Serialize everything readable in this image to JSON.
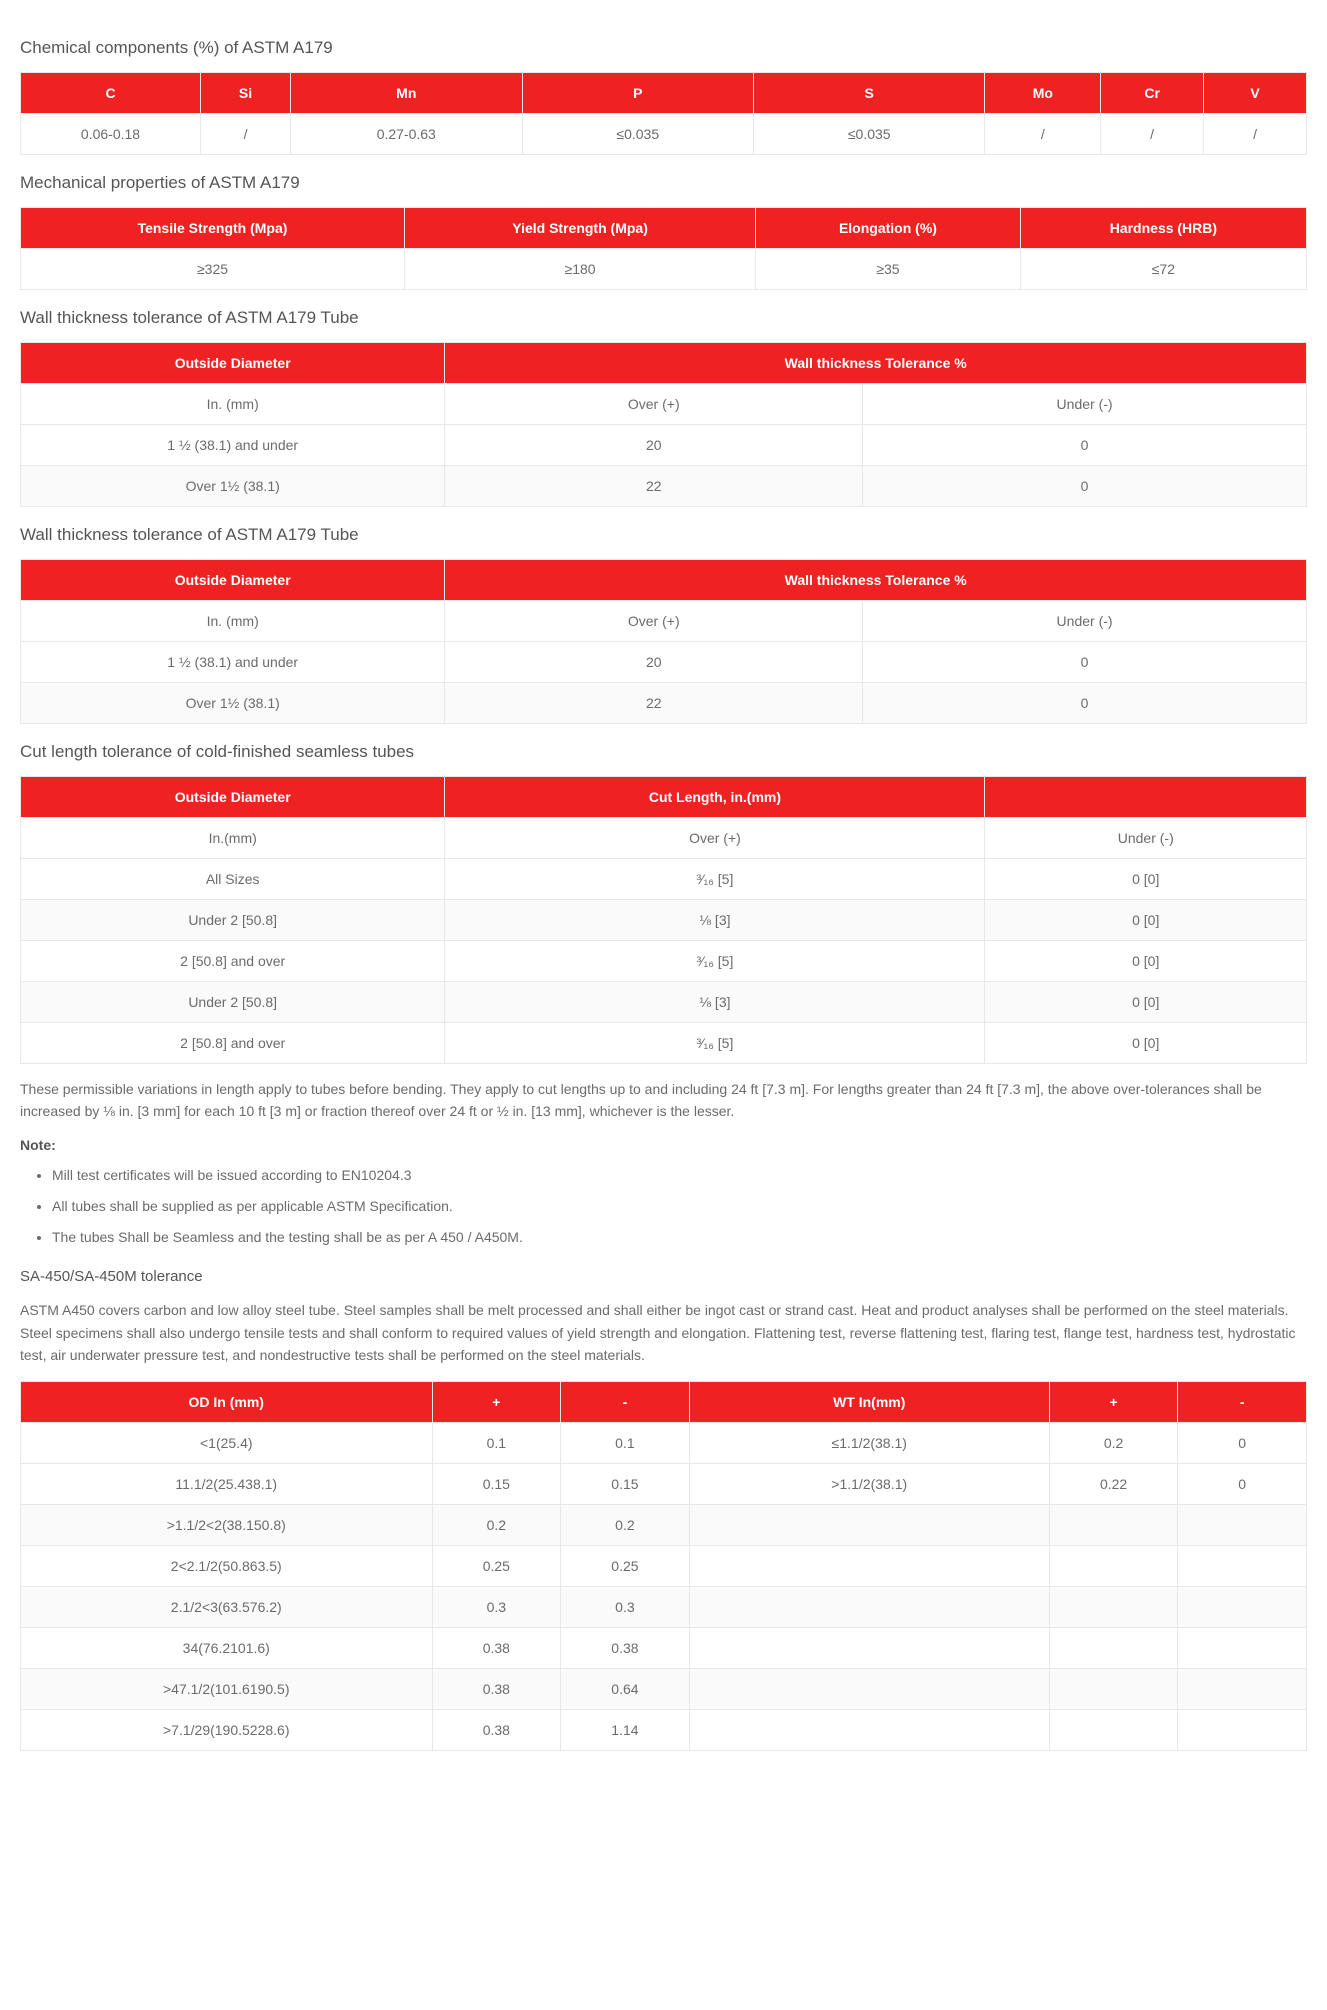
{
  "chem": {
    "title": "Chemical components (%) of ASTM A179",
    "headers": [
      "C",
      "Si",
      "Mn",
      "P",
      "S",
      "Mo",
      "Cr",
      "V"
    ],
    "row": [
      "0.06-0.18",
      "/",
      "0.27-0.63",
      "≤0.035",
      "≤0.035",
      "/",
      "/",
      "/"
    ]
  },
  "mech": {
    "title": "Mechanical properties of ASTM A179",
    "headers": [
      "Tensile Strength (Mpa)",
      "Yield Strength (Mpa)",
      "Elongation (%)",
      "Hardness (HRB)"
    ],
    "row": [
      "≥325",
      "≥180",
      "≥35",
      "≤72"
    ]
  },
  "wall1": {
    "title": "Wall thickness tolerance of ASTM A179 Tube",
    "h1": "Outside Diameter",
    "h2": "Wall thickness Tolerance %",
    "sub": [
      "In. (mm)",
      "Over (+)",
      "Under (-)"
    ],
    "rows": [
      [
        "1 ½ (38.1) and under",
        "20",
        "0"
      ],
      [
        "Over 1½ (38.1)",
        "22",
        "0"
      ]
    ]
  },
  "wall2": {
    "title": "Wall thickness tolerance of ASTM A179 Tube",
    "h1": "Outside Diameter",
    "h2": "Wall thickness Tolerance %",
    "sub": [
      "In. (mm)",
      "Over (+)",
      "Under (-)"
    ],
    "rows": [
      [
        "1 ½ (38.1) and under",
        "20",
        "0"
      ],
      [
        "Over 1½ (38.1)",
        "22",
        "0"
      ]
    ]
  },
  "cut": {
    "title": "Cut length tolerance of cold-finished seamless tubes",
    "h1": "Outside Diameter",
    "h2": "Cut Length, in.(mm)",
    "h3": "",
    "sub": [
      "In.(mm)",
      "Over (+)",
      "Under (-)"
    ],
    "rows": [
      [
        "All Sizes",
        "³⁄₁₆ [5]",
        "0 [0]"
      ],
      [
        "Under 2 [50.8]",
        "⅛ [3]",
        "0 [0]"
      ],
      [
        "2 [50.8] and over",
        "³⁄₁₆ [5]",
        "0 [0]"
      ],
      [
        "Under 2 [50.8]",
        "⅛ [3]",
        "0 [0]"
      ],
      [
        "2 [50.8] and over",
        "³⁄₁₆ [5]",
        "0 [0]"
      ]
    ]
  },
  "para1": "These permissible variations in length apply to tubes before bending. They apply to cut lengths up to and including 24 ft [7.3 m]. For lengths greater than 24 ft [7.3 m], the above over-tolerances shall be increased by ⅛ in. [3 mm] for each 10 ft [3 m] or fraction thereof over 24 ft or ½ in. [13 mm], whichever is the lesser.",
  "note_label": "Note:",
  "notes": [
    "Mill test certificates will be issued according to EN10204.3",
    "All tubes shall be supplied as per applicable ASTM Specification.",
    "The tubes Shall be Seamless and the testing shall be as per A 450 / A450M."
  ],
  "sa": {
    "title": "SA-450/SA-450M tolerance",
    "para": "ASTM A450 covers carbon and low alloy steel tube. Steel samples shall be melt processed and shall either be ingot cast or strand cast. Heat and product analyses shall be performed on the steel materials. Steel specimens shall also undergo tensile tests and shall conform to required values of yield strength and elongation. Flattening test, reverse flattening test, flaring test, flange test, hardness test, hydrostatic test, air underwater pressure test, and nondestructive tests shall be performed on the steel materials.",
    "headers": [
      "OD In (mm)",
      "+",
      "-",
      "WT In(mm)",
      "+",
      "-"
    ],
    "rows": [
      [
        "<1(25.4)",
        "0.1",
        "0.1",
        "≤1.1/2(38.1)",
        "0.2",
        "0"
      ],
      [
        "11.1/2(25.438.1)",
        "0.15",
        "0.15",
        ">1.1/2(38.1)",
        "0.22",
        "0"
      ],
      [
        ">1.1/2<2(38.150.8)",
        "0.2",
        "0.2",
        "",
        "",
        ""
      ],
      [
        "2<2.1/2(50.863.5)",
        "0.25",
        "0.25",
        "",
        "",
        ""
      ],
      [
        "2.1/2<3(63.576.2)",
        "0.3",
        "0.3",
        "",
        "",
        ""
      ],
      [
        "34(76.2101.6)",
        "0.38",
        "0.38",
        "",
        "",
        ""
      ],
      [
        ">47.1/2(101.6190.5)",
        "0.38",
        "0.64",
        "",
        "",
        ""
      ],
      [
        ">7.1/29(190.5228.6)",
        "0.38",
        "1.14",
        "",
        "",
        ""
      ]
    ]
  }
}
